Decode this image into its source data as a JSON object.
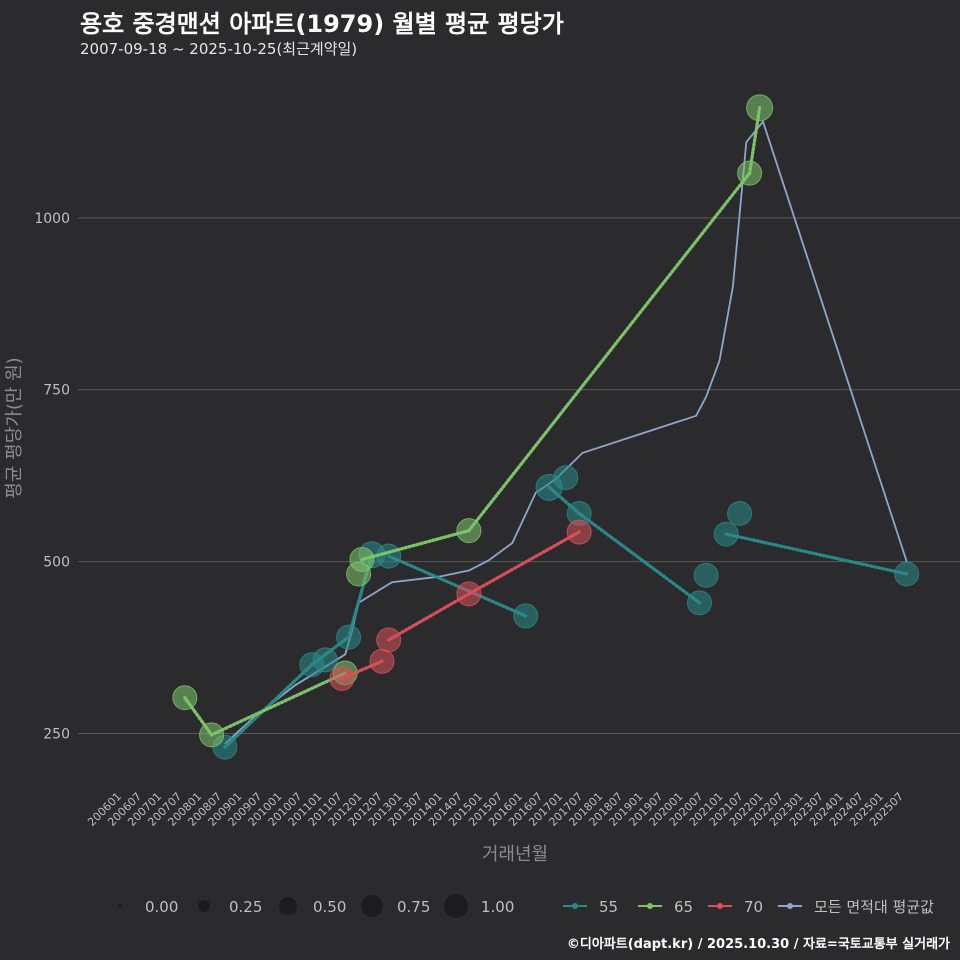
{
  "header": {
    "title": "용호 중경맨션 아파트(1979) 월별 평균 평당가",
    "subtitle": "2007-09-18 ~ 2025-10-25(최근계약일)"
  },
  "footer": {
    "credit": "©디아파트(dapt.kr) / 2025.10.30 / 자료=국토교통부 실거래가"
  },
  "colors": {
    "background": "#2b2b2d",
    "grid": "#5a5a5a",
    "s55": "#2a8a8a",
    "s65": "#7ec46a",
    "s70": "#d9505a",
    "avg": "#8ea6cc"
  },
  "chart_data": {
    "type": "line",
    "title": "용호 중경맨션 아파트(1979) 월별 평균 평당가",
    "xlabel": "거래년월",
    "ylabel": "평균 평당가(만 원)",
    "x_ticks": [
      "200601",
      "200607",
      "200701",
      "200707",
      "200801",
      "200807",
      "200901",
      "200907",
      "201001",
      "201007",
      "201101",
      "201107",
      "201201",
      "201207",
      "201301",
      "201307",
      "201401",
      "201407",
      "201501",
      "201507",
      "201601",
      "201607",
      "201701",
      "201707",
      "201801",
      "201807",
      "201901",
      "201907",
      "202001",
      "202007",
      "202101",
      "202107",
      "202201",
      "202207",
      "202301",
      "202307",
      "202401",
      "202407",
      "202501",
      "202507"
    ],
    "y_ticks": [
      250,
      500,
      750,
      1000
    ],
    "ylim": [
      175,
      1215
    ],
    "x_range": [
      "2006-01",
      "2025-10"
    ],
    "size_legend": {
      "values": [
        "0.00",
        "0.25",
        "0.50",
        "0.75",
        "1.00"
      ]
    },
    "series": [
      {
        "name": "55",
        "key": "s55",
        "points": [
          {
            "x": "2008-09",
            "y": 230,
            "s": 0.6
          },
          {
            "x": "2010-11",
            "y": 350,
            "s": 0.6
          },
          {
            "x": "2011-03",
            "y": 357,
            "s": 0.6
          },
          {
            "x": "2011-10",
            "y": 390,
            "s": 0.6
          },
          {
            "x": "2012-05",
            "y": 510,
            "s": 0.7
          },
          {
            "x": "2012-10",
            "y": 508,
            "s": 0.6
          },
          {
            "x": "2016-03",
            "y": 421,
            "s": 0.6
          },
          {
            "x": "2016-10",
            "y": 608,
            "s": 0.7
          },
          {
            "x": "2017-03",
            "y": 622,
            "s": 0.6
          },
          {
            "x": "2017-07",
            "y": 570,
            "s": 0.6
          },
          {
            "x": "2020-07",
            "y": 440,
            "s": 0.6
          },
          {
            "x": "2020-09",
            "y": 480,
            "s": 0.6
          },
          {
            "x": "2021-03",
            "y": 540,
            "s": 0.6
          },
          {
            "x": "2021-07",
            "y": 570,
            "s": 0.6
          },
          {
            "x": "2025-09",
            "y": 482,
            "s": 0.6
          }
        ],
        "segments": [
          [
            0,
            1
          ],
          [
            1,
            3
          ],
          [
            3,
            4
          ],
          [
            5,
            6
          ],
          [
            7,
            9
          ],
          [
            9,
            10
          ],
          [
            12,
            14
          ]
        ]
      },
      {
        "name": "65",
        "key": "s65",
        "points": [
          {
            "x": "2007-09",
            "y": 302,
            "s": 0.6
          },
          {
            "x": "2008-05",
            "y": 248,
            "s": 0.6
          },
          {
            "x": "2011-09",
            "y": 338,
            "s": 0.6
          },
          {
            "x": "2012-01",
            "y": 482,
            "s": 0.6
          },
          {
            "x": "2012-02",
            "y": 503,
            "s": 0.6
          },
          {
            "x": "2014-10",
            "y": 545,
            "s": 0.6
          },
          {
            "x": "2021-10",
            "y": 1065,
            "s": 0.6
          },
          {
            "x": "2022-01",
            "y": 1160,
            "s": 0.7
          }
        ],
        "segments": [
          [
            0,
            1
          ],
          [
            1,
            2
          ],
          [
            4,
            5
          ],
          [
            5,
            6
          ],
          [
            6,
            7
          ]
        ]
      },
      {
        "name": "70",
        "key": "s70",
        "points": [
          {
            "x": "2011-08",
            "y": 330,
            "s": 0.6
          },
          {
            "x": "2012-08",
            "y": 355,
            "s": 0.6
          },
          {
            "x": "2012-10",
            "y": 386,
            "s": 0.6
          },
          {
            "x": "2014-10",
            "y": 453,
            "s": 0.6
          },
          {
            "x": "2017-07",
            "y": 543,
            "s": 0.6
          }
        ],
        "segments": [
          [
            0,
            1
          ],
          [
            2,
            3
          ],
          [
            3,
            4
          ]
        ]
      },
      {
        "name": "모든 면적대 평균값",
        "key": "avg",
        "line": [
          {
            "x": "2008-09",
            "y": 235
          },
          {
            "x": "2009-06",
            "y": 275
          },
          {
            "x": "2010-06",
            "y": 320
          },
          {
            "x": "2011-04",
            "y": 350
          },
          {
            "x": "2011-09",
            "y": 365
          },
          {
            "x": "2011-11",
            "y": 398
          },
          {
            "x": "2012-01",
            "y": 440
          },
          {
            "x": "2012-06",
            "y": 455
          },
          {
            "x": "2012-11",
            "y": 470
          },
          {
            "x": "2014-01",
            "y": 478
          },
          {
            "x": "2014-10",
            "y": 487
          },
          {
            "x": "2015-04",
            "y": 502
          },
          {
            "x": "2015-11",
            "y": 527
          },
          {
            "x": "2016-06",
            "y": 600
          },
          {
            "x": "2016-12",
            "y": 620
          },
          {
            "x": "2017-08",
            "y": 658
          },
          {
            "x": "2020-06",
            "y": 712
          },
          {
            "x": "2020-09",
            "y": 740
          },
          {
            "x": "2021-01",
            "y": 792
          },
          {
            "x": "2021-05",
            "y": 900
          },
          {
            "x": "2021-09",
            "y": 1110
          },
          {
            "x": "2022-02",
            "y": 1140
          },
          {
            "x": "2025-09",
            "y": 500
          }
        ]
      }
    ]
  }
}
